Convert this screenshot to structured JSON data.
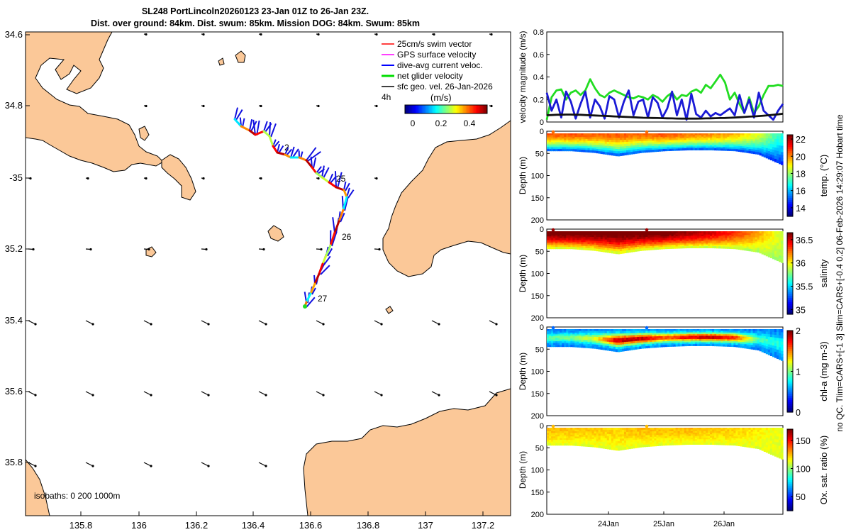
{
  "title": {
    "line1": "SL248 PortLincoln20260123 23-Jan 01Z to 26-Jan 23Z.",
    "line2": "Dist. over ground: 84km. Dist. swum: 85km. Mission DOG: 84km. Swum: 85km"
  },
  "map": {
    "type": "map",
    "lon_ticks": [
      "135.8",
      "136",
      "136.2",
      "136.4",
      "136.6",
      "136.8",
      "137",
      "137.2"
    ],
    "lat_ticks": [
      "34.6",
      "34.8",
      "-35",
      "35.2",
      "35.4",
      "35.6",
      "35.8"
    ],
    "legend": [
      {
        "label": "25cm/s swim vector",
        "color": "#ff0000"
      },
      {
        "label": "GPS surface velocity",
        "color": "#ff00ff"
      },
      {
        "label": "dive-avg current veloc.",
        "color": "#0000ff"
      },
      {
        "label": "net glider velocity",
        "color": "#00dd00"
      },
      {
        "label": "sfc geo. vel. 26-Jan-2026",
        "color": "#000000"
      }
    ],
    "legend_extra": "4h",
    "colorbar": {
      "label": "(m/s)",
      "ticks": [
        "0",
        "0.2",
        "0.4"
      ],
      "range": [
        0,
        0.5
      ]
    },
    "track_labels": [
      "2",
      "25",
      "26",
      "27"
    ],
    "isobaths_label": "isobaths: 0   200  1000m",
    "colors": {
      "land": "#fbc898",
      "water": "#ffffff"
    }
  },
  "chart_data": [
    {
      "type": "line",
      "ylabel": "velocity magnitude (m/s)",
      "ylim": [
        0,
        0.8
      ],
      "yticks": [
        "0",
        "0.2",
        "0.4",
        "0.6",
        "0.8"
      ],
      "x": [
        0,
        1,
        2,
        3,
        4,
        5,
        6,
        7,
        8,
        9,
        10,
        11,
        12,
        13,
        14,
        15,
        16,
        17,
        18,
        19,
        20,
        21,
        22,
        23,
        24,
        25,
        26,
        27,
        28,
        29,
        30,
        31,
        32,
        33,
        34,
        35,
        36,
        37,
        38,
        39,
        40,
        41,
        42,
        43,
        44,
        45,
        46,
        47,
        48,
        49
      ],
      "series": [
        {
          "name": "net glider velocity",
          "color": "#22dd22",
          "values": [
            0.02,
            0.22,
            0.28,
            0.29,
            0.2,
            0.26,
            0.28,
            0.24,
            0.28,
            0.38,
            0.3,
            0.24,
            0.22,
            0.26,
            0.28,
            0.26,
            0.24,
            0.22,
            0.21,
            0.23,
            0.22,
            0.2,
            0.24,
            0.22,
            0.18,
            0.23,
            0.26,
            0.2,
            0.24,
            0.23,
            0.27,
            0.29,
            0.26,
            0.33,
            0.3,
            0.36,
            0.42,
            0.35,
            0.2,
            0.26,
            0.16,
            0.08,
            0.22,
            0.08,
            0.14,
            0.24,
            0.32,
            0.32,
            0.33,
            0.32
          ]
        },
        {
          "name": "dive-avg current veloc.",
          "color": "#1a1ad6",
          "values": [
            0.26,
            0.1,
            0.2,
            0.04,
            0.27,
            0.18,
            0.03,
            0.16,
            0.27,
            0.04,
            0.2,
            0.14,
            0.03,
            0.23,
            0.2,
            0.04,
            0.18,
            0.28,
            0.06,
            0.18,
            0.2,
            0.04,
            0.22,
            0.17,
            0.04,
            0.12,
            0.27,
            0.06,
            0.2,
            0.02,
            0.25,
            0.07,
            0.04,
            0.1,
            0.05,
            0.08,
            0.06,
            0.09,
            0.12,
            0.06,
            0.24,
            0.08,
            0.2,
            0.04,
            0.26,
            0.1,
            0.06,
            0.02,
            0.1,
            0.16
          ]
        },
        {
          "name": "sfc geo. vel.",
          "color": "#111111",
          "values": [
            0.06,
            0.062,
            0.064,
            0.065,
            0.066,
            0.066,
            0.065,
            0.064,
            0.062,
            0.06,
            0.058,
            0.056,
            0.054,
            0.052,
            0.05,
            0.048,
            0.046,
            0.044,
            0.042,
            0.04,
            0.038,
            0.037,
            0.036,
            0.035,
            0.034,
            0.033,
            0.032,
            0.031,
            0.03,
            0.03,
            0.03,
            0.03,
            0.031,
            0.032,
            0.033,
            0.034,
            0.035,
            0.036,
            0.038,
            0.04,
            0.042,
            0.045,
            0.048,
            0.05,
            0.053,
            0.056,
            0.06,
            0.064,
            0.068,
            0.074
          ]
        }
      ]
    },
    {
      "type": "heatmap",
      "ylabel": "Depth (m)",
      "clabel": "temp. (°C)",
      "yticks": [
        "0",
        "50",
        "100",
        "150",
        "200"
      ],
      "cticks": [
        "22",
        "20",
        "18",
        "16",
        "14"
      ],
      "crange": [
        13,
        22.5
      ],
      "surface_value": 20.3,
      "bottom_value": 14.2,
      "x": [
        0,
        0.1,
        0.2,
        0.3,
        0.4,
        0.5,
        0.6,
        0.7,
        0.8,
        0.9,
        1
      ],
      "max_depth": [
        40,
        40,
        44,
        52,
        44,
        40,
        38,
        38,
        40,
        48,
        72
      ],
      "profile_top": [
        20.5,
        20.6,
        20.4,
        20.5,
        20.3,
        20.6,
        20.2,
        20.0,
        19.6,
        18.6,
        16.8
      ]
    },
    {
      "type": "heatmap",
      "ylabel": "Depth (m)",
      "clabel": "salinity",
      "yticks": [
        "0",
        "50",
        "100",
        "150",
        "200"
      ],
      "cticks": [
        "36.5",
        "36",
        "35.5",
        "35"
      ],
      "crange": [
        34.9,
        36.65
      ],
      "surface_value": 36.6,
      "bottom_value": 35.8,
      "x": [
        0,
        0.1,
        0.2,
        0.3,
        0.4,
        0.5,
        0.6,
        0.7,
        0.8,
        0.9,
        1
      ],
      "max_depth": [
        40,
        40,
        44,
        52,
        44,
        40,
        38,
        38,
        40,
        48,
        72
      ],
      "profile_top": [
        36.7,
        36.7,
        36.7,
        36.7,
        36.7,
        36.7,
        36.6,
        36.5,
        36.35,
        36.15,
        35.9
      ]
    },
    {
      "type": "heatmap",
      "ylabel": "Depth (m)",
      "clabel": "chl-a (mg m-3)",
      "yticks": [
        "0",
        "50",
        "100",
        "150",
        "200"
      ],
      "cticks": [
        "2",
        "1",
        "0"
      ],
      "crange": [
        0,
        2
      ],
      "surface_value": 0.45,
      "bottom_value": 1.0,
      "x": [
        0,
        0.1,
        0.2,
        0.3,
        0.4,
        0.5,
        0.6,
        0.7,
        0.8,
        0.9,
        1
      ],
      "max_depth": [
        40,
        40,
        44,
        52,
        44,
        40,
        38,
        38,
        40,
        48,
        72
      ],
      "profile_top": [
        0.9,
        1.0,
        1.2,
        1.9,
        1.9,
        1.6,
        1.8,
        1.9,
        1.7,
        0.9,
        0.8
      ]
    },
    {
      "type": "heatmap",
      "ylabel": "Depth (m)",
      "clabel": "Ox. sat. ratio (%)",
      "yticks": [
        "0",
        "50",
        "100",
        "150",
        "200"
      ],
      "cticks": [
        "150",
        "100",
        "50"
      ],
      "crange": [
        25,
        170
      ],
      "surface_value": 125,
      "bottom_value": 110,
      "x": [
        0,
        0.1,
        0.2,
        0.3,
        0.4,
        0.5,
        0.6,
        0.7,
        0.8,
        0.9,
        1
      ],
      "max_depth": [
        40,
        40,
        44,
        52,
        44,
        40,
        38,
        38,
        40,
        48,
        72
      ],
      "profile_top": [
        125,
        124,
        123,
        122,
        125,
        124,
        126,
        124,
        122,
        118,
        112
      ]
    }
  ],
  "time_axis": {
    "ticks": [
      "24Jan",
      "25Jan",
      "26Jan"
    ]
  },
  "side_note": "no QC. Tlim=CARS+[-1 3] Slim=CARS+[-0.4 0.2] 06-Feb-2026 14:29:07 Hobart time"
}
